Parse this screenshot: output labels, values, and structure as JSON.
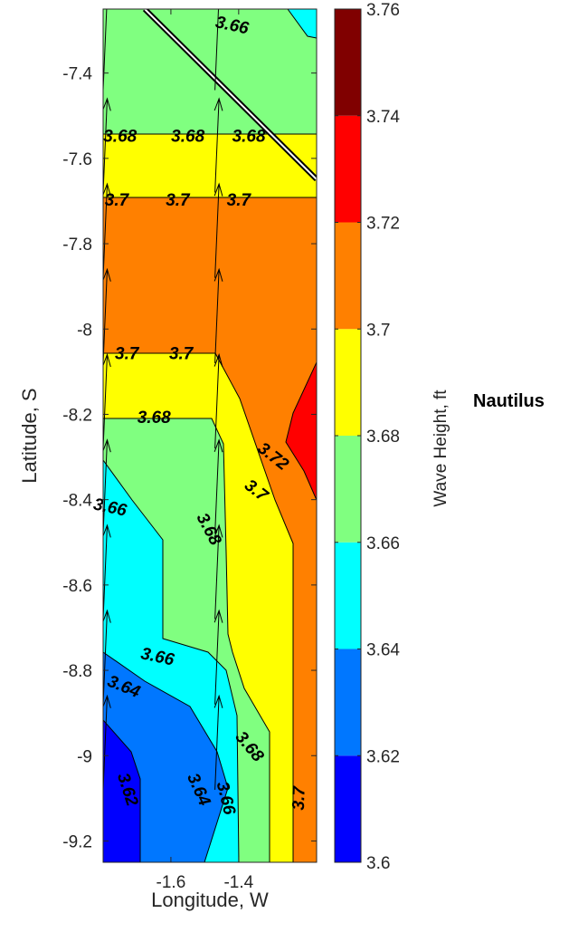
{
  "chart_data": {
    "type": "contour",
    "title": "",
    "xlabel": "Longitude, W",
    "ylabel": "Latitude, S",
    "xlim": [
      -1.8,
      -1.17
    ],
    "ylim": [
      -9.25,
      -7.25
    ],
    "xticks": [
      -1.6,
      -1.4
    ],
    "xtick_labels": [
      "-1.6",
      "-1.4"
    ],
    "yticks": [
      -7.4,
      -7.6,
      -7.8,
      -8.0,
      -8.2,
      -8.4,
      -8.6,
      -8.8,
      -9.0,
      -9.2
    ],
    "ytick_labels": [
      "-7.4",
      "-7.6",
      "-7.8",
      "-8",
      "-8.2",
      "-8.4",
      "-8.6",
      "-8.8",
      "-9",
      "-9.2"
    ],
    "colorbar": {
      "label": "Wave Height, ft",
      "range": [
        3.6,
        3.76
      ],
      "levels": [
        3.6,
        3.62,
        3.64,
        3.66,
        3.68,
        3.7,
        3.72,
        3.74,
        3.76
      ],
      "tick_labels": [
        "3.6",
        "3.62",
        "3.64",
        "3.66",
        "3.68",
        "3.7",
        "3.72",
        "3.74",
        "3.76"
      ],
      "colors": [
        "#0000ff",
        "#0077ff",
        "#00ffff",
        "#80ff80",
        "#ffff00",
        "#ff8000",
        "#ff0000",
        "#800000"
      ]
    },
    "contour_labels": [
      {
        "text": "3.66",
        "lon": -1.42,
        "lat": -7.29,
        "rot": 12
      },
      {
        "text": "3.68",
        "lon": -1.75,
        "lat": -7.55,
        "rot": 0
      },
      {
        "text": "3.68",
        "lon": -1.55,
        "lat": -7.55,
        "rot": 0
      },
      {
        "text": "3.68",
        "lon": -1.37,
        "lat": -7.55,
        "rot": 0
      },
      {
        "text": "3.7",
        "lon": -1.76,
        "lat": -7.7,
        "rot": 0
      },
      {
        "text": "3.7",
        "lon": -1.58,
        "lat": -7.7,
        "rot": 0
      },
      {
        "text": "3.7",
        "lon": -1.4,
        "lat": -7.7,
        "rot": 0
      },
      {
        "text": "3.7",
        "lon": -1.73,
        "lat": -8.06,
        "rot": 0
      },
      {
        "text": "3.7",
        "lon": -1.57,
        "lat": -8.06,
        "rot": 0
      },
      {
        "text": "3.68",
        "lon": -1.65,
        "lat": -8.21,
        "rot": 0
      },
      {
        "text": "3.72",
        "lon": -1.3,
        "lat": -8.3,
        "rot": 38
      },
      {
        "text": "3.7",
        "lon": -1.35,
        "lat": -8.38,
        "rot": 38
      },
      {
        "text": "3.68",
        "lon": -1.49,
        "lat": -8.47,
        "rot": 62
      },
      {
        "text": "3.66",
        "lon": -1.78,
        "lat": -8.42,
        "rot": 12
      },
      {
        "text": "3.66",
        "lon": -1.64,
        "lat": -8.77,
        "rot": 12
      },
      {
        "text": "3.64",
        "lon": -1.74,
        "lat": -8.84,
        "rot": 22
      },
      {
        "text": "3.62",
        "lon": -1.73,
        "lat": -9.08,
        "rot": 72
      },
      {
        "text": "3.64",
        "lon": -1.52,
        "lat": -9.08,
        "rot": 66
      },
      {
        "text": "3.66",
        "lon": -1.44,
        "lat": -9.1,
        "rot": 76
      },
      {
        "text": "3.68",
        "lon": -1.37,
        "lat": -8.98,
        "rot": 50
      },
      {
        "text": "3.7",
        "lon": -1.22,
        "lat": -9.1,
        "rot": -88
      }
    ],
    "vectors": {
      "lon": [
        -1.8,
        -1.47
      ],
      "lat": [
        -7.25,
        -7.44,
        -7.68,
        -7.88,
        -8.08,
        -8.28,
        -8.48,
        -8.68,
        -8.88,
        -9.08
      ],
      "u": 0.012,
      "v": 0.22
    },
    "side_label": "Nautilus"
  }
}
